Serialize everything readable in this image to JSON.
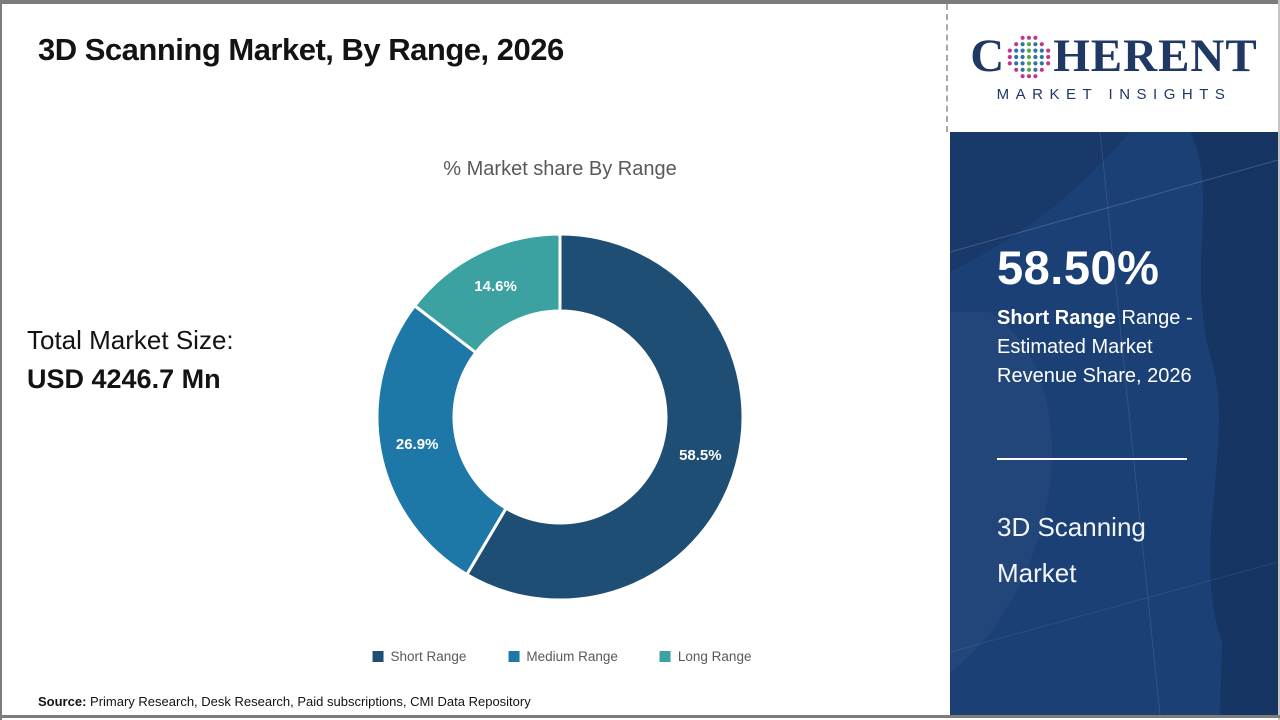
{
  "header": {
    "title": "3D Scanning Market, By Range, 2026"
  },
  "logo": {
    "word_pre": "C",
    "word_post": "HERENT",
    "subtitle": "MARKET INSIGHTS",
    "text_color": "#1f3864",
    "globe_dot_colors": {
      "green": "#5BA546",
      "blue": "#2E74A8",
      "magenta": "#C2368B"
    }
  },
  "left_panel": {
    "total_label": "Total Market Size:",
    "total_value": "USD 4246.7 Mn"
  },
  "chart_data": {
    "type": "pie",
    "subtype": "donut",
    "title": "% Market share By Range",
    "categories": [
      "Short Range",
      "Medium Range",
      "Long Range"
    ],
    "values": [
      58.5,
      26.9,
      14.6
    ],
    "data_labels": [
      "58.5%",
      "26.9%",
      "14.6%"
    ],
    "colors": [
      "#1F4E74",
      "#1D77A7",
      "#3BA2A1"
    ],
    "start_angle_deg": 0,
    "direction": "clockwise",
    "inner_radius_ratio": 0.58,
    "label_color": "#FFFFFF",
    "legend_position": "bottom",
    "legend_text_color": "#595959"
  },
  "sidebar": {
    "bg_color": "#1b4075",
    "headline_value": "58.50%",
    "subtitle_bold": "Short Range",
    "subtitle_rest": " Range - Estimated Market Revenue Share, 2026",
    "footer_title": "3D Scanning Market"
  },
  "source": {
    "label": "Source:",
    "text": " Primary Research, Desk Research, Paid subscriptions, CMI Data Repository"
  }
}
